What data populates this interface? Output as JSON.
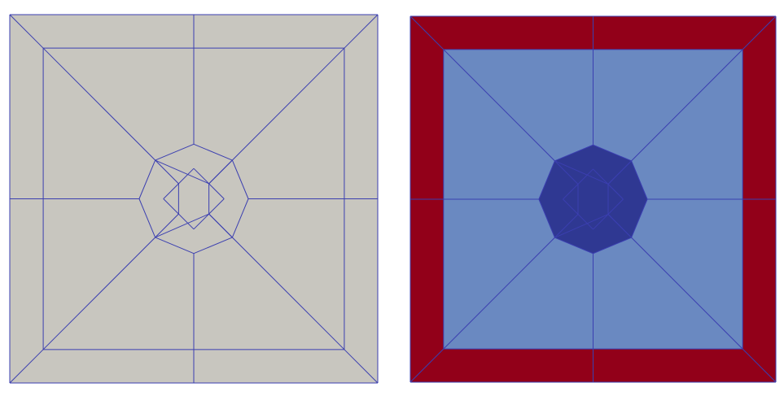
{
  "colors": {
    "background": "#ffffff",
    "left_fill": "#c8c6bf",
    "edge": "#3b3fb0",
    "outer_region": "#920019",
    "middle_region": "#6a89c1",
    "inner_region": "#2f3892"
  },
  "mesh": {
    "nodes": [
      [
        0,
        0
      ],
      [
        1,
        0
      ],
      [
        1,
        1
      ],
      [
        0,
        1
      ],
      [
        0.5,
        0
      ],
      [
        1,
        0.5
      ],
      [
        0.5,
        1
      ],
      [
        0,
        0.5
      ],
      [
        0.0909,
        0.0909
      ],
      [
        0.9091,
        0.0909
      ],
      [
        0.9091,
        0.9091
      ],
      [
        0.0909,
        0.9091
      ],
      [
        0.5,
        0.0909
      ],
      [
        0.9091,
        0.5
      ],
      [
        0.5,
        0.9091
      ],
      [
        0.0909,
        0.5
      ],
      [
        0.5,
        0.3517
      ],
      [
        0.6048,
        0.3952
      ],
      [
        0.6483,
        0.5
      ],
      [
        0.6048,
        0.6048
      ],
      [
        0.5,
        0.6483
      ],
      [
        0.3952,
        0.6048
      ],
      [
        0.3517,
        0.5
      ],
      [
        0.3952,
        0.3952
      ],
      [
        0.5,
        0.4176
      ],
      [
        0.5824,
        0.5
      ],
      [
        0.5,
        0.5824
      ],
      [
        0.4176,
        0.5
      ],
      [
        0.4588,
        0.4588
      ],
      [
        0.5412,
        0.4588
      ],
      [
        0.5412,
        0.5412
      ],
      [
        0.4588,
        0.5412
      ]
    ],
    "edges": [
      [
        0,
        4
      ],
      [
        4,
        1
      ],
      [
        1,
        5
      ],
      [
        5,
        2
      ],
      [
        2,
        6
      ],
      [
        6,
        3
      ],
      [
        3,
        7
      ],
      [
        7,
        0
      ],
      [
        8,
        12
      ],
      [
        12,
        9
      ],
      [
        9,
        13
      ],
      [
        13,
        10
      ],
      [
        10,
        14
      ],
      [
        14,
        11
      ],
      [
        11,
        15
      ],
      [
        15,
        8
      ],
      [
        0,
        8
      ],
      [
        1,
        9
      ],
      [
        2,
        10
      ],
      [
        3,
        11
      ],
      [
        4,
        12
      ],
      [
        5,
        13
      ],
      [
        6,
        14
      ],
      [
        7,
        15
      ],
      [
        12,
        16
      ],
      [
        13,
        18
      ],
      [
        14,
        20
      ],
      [
        15,
        22
      ],
      [
        8,
        23
      ],
      [
        9,
        17
      ],
      [
        10,
        19
      ],
      [
        11,
        21
      ],
      [
        16,
        17
      ],
      [
        17,
        18
      ],
      [
        18,
        19
      ],
      [
        19,
        20
      ],
      [
        20,
        21
      ],
      [
        21,
        22
      ],
      [
        22,
        23
      ],
      [
        23,
        16
      ],
      [
        23,
        28
      ],
      [
        28,
        31
      ],
      [
        31,
        21
      ],
      [
        17,
        29
      ],
      [
        29,
        30
      ],
      [
        30,
        19
      ],
      [
        23,
        29
      ],
      [
        29,
        17
      ],
      [
        21,
        30
      ],
      [
        30,
        19
      ],
      [
        28,
        24
      ],
      [
        24,
        29
      ],
      [
        31,
        26
      ],
      [
        26,
        30
      ],
      [
        28,
        27
      ],
      [
        27,
        31
      ],
      [
        29,
        25
      ],
      [
        25,
        30
      ]
    ],
    "regions": {
      "outer": [
        0,
        1,
        2,
        3
      ],
      "middle": [
        8,
        9,
        10,
        11
      ],
      "inner": [
        16,
        17,
        18,
        19,
        20,
        21,
        22,
        23
      ]
    }
  }
}
